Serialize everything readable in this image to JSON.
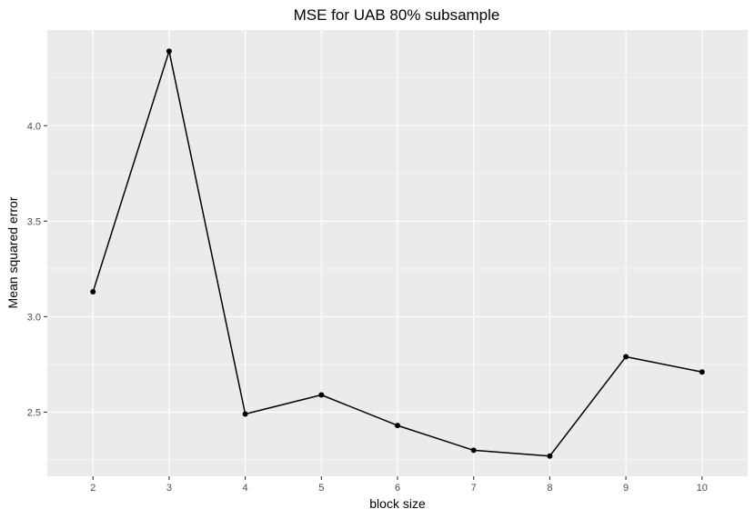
{
  "chart_data": {
    "type": "line",
    "title": "MSE for  UAB 80% subsample",
    "xlabel": "block size",
    "ylabel": "Mean squared error",
    "x": [
      2,
      3,
      4,
      5,
      6,
      7,
      8,
      9,
      10
    ],
    "series": [
      {
        "values": [
          3.13,
          4.39,
          2.49,
          2.59,
          2.43,
          2.3,
          2.27,
          2.79,
          2.71
        ]
      }
    ],
    "xticks": [
      "2",
      "3",
      "4",
      "5",
      "6",
      "7",
      "8",
      "9",
      "10"
    ],
    "yticks": [
      "2.5",
      "3.0",
      "3.5",
      "4.0"
    ],
    "xlim": [
      1.4,
      10.6
    ],
    "ylim": [
      2.164,
      4.501
    ],
    "grid": true,
    "colors": {
      "panel": "#ebebeb",
      "grid": "#ffffff",
      "line": "#000000",
      "point": "#000000",
      "tick_text": "#4d4d4d"
    }
  }
}
